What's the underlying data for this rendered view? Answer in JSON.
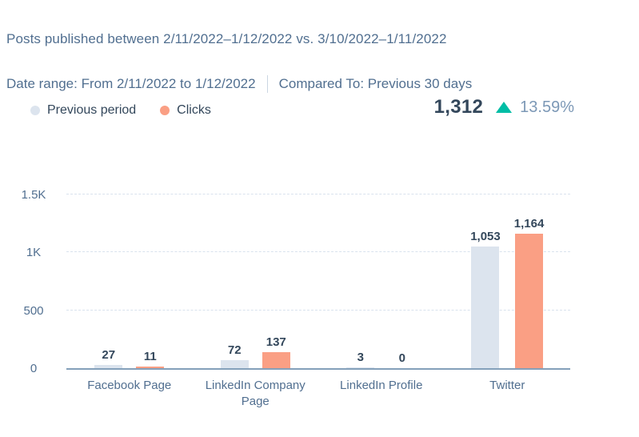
{
  "header": {
    "title": "Posts published between 2/11/2022–1/12/2022 vs. 3/10/2022–1/11/2022"
  },
  "filters": {
    "date_range_label": "Date range:",
    "date_range_value": "From 2/11/2022 to 1/12/2022",
    "compared_to_label": "Compared To:",
    "compared_to_value": "Previous 30 days"
  },
  "legend": {
    "items": [
      {
        "label": "Previous period",
        "color": "#dce4ee"
      },
      {
        "label": "Clicks",
        "color": "#fa9f84"
      }
    ]
  },
  "summary": {
    "total": "1,312",
    "direction": "up",
    "delta": "13.59%",
    "trend_icon": "triangle-up-icon",
    "trend_color": "#00bda5"
  },
  "chart_data": {
    "type": "bar",
    "title": "Posts published between 2/11/2022–1/12/2022 vs. 3/10/2022–1/11/2022",
    "categories": [
      "Facebook Page",
      "LinkedIn Company Page",
      "LinkedIn Profile",
      "Twitter"
    ],
    "series": [
      {
        "name": "Previous period",
        "color": "#dce4ee",
        "values": [
          27,
          72,
          3,
          1053
        ],
        "labels": [
          "27",
          "72",
          "3",
          "1,053"
        ]
      },
      {
        "name": "Clicks",
        "color": "#fa9f84",
        "values": [
          11,
          137,
          0,
          1164
        ],
        "labels": [
          "11",
          "137",
          "0",
          "1,164"
        ]
      }
    ],
    "xlabel": "",
    "ylabel": "",
    "ylim": [
      0,
      1500
    ],
    "yticks": [
      {
        "value": 0,
        "label": "0"
      },
      {
        "value": 500,
        "label": "500"
      },
      {
        "value": 1000,
        "label": "1K"
      },
      {
        "value": 1500,
        "label": "1.5K"
      }
    ],
    "grid": "horizontal-dashed",
    "legend_position": "top-left"
  }
}
